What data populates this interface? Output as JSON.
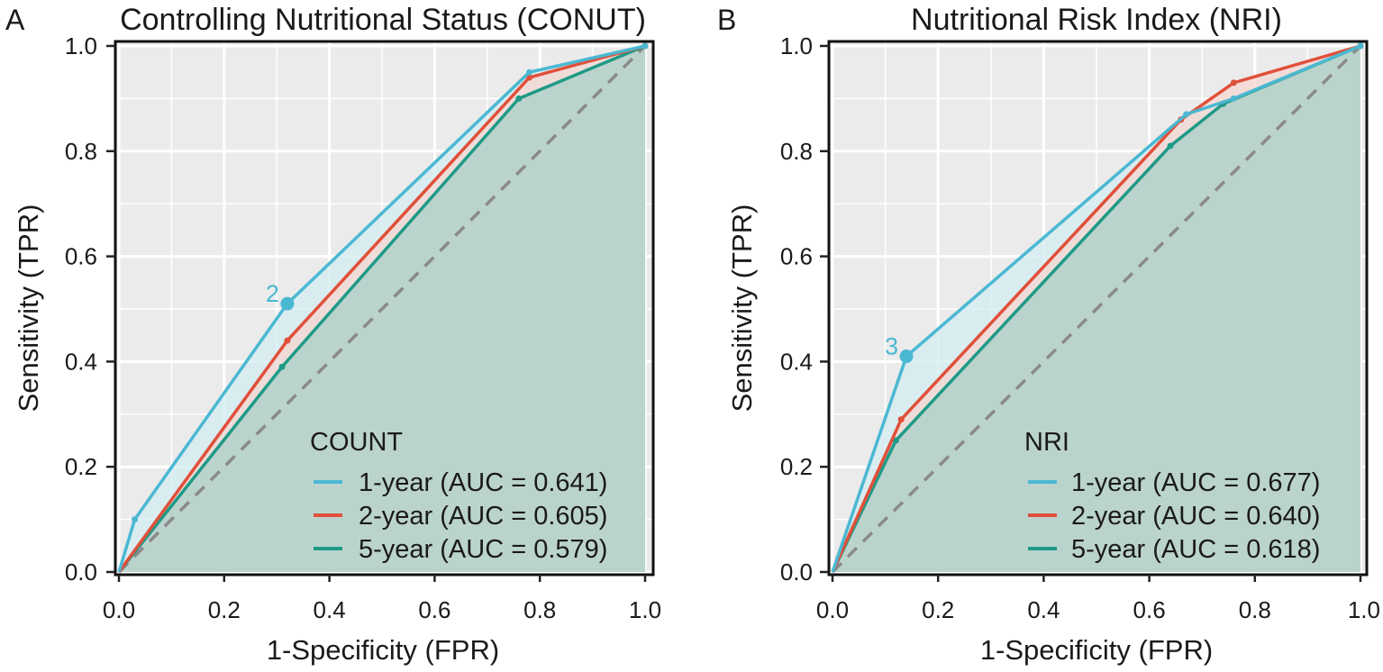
{
  "chart_data": [
    {
      "type": "line",
      "panel_letter": "A",
      "title": "Controlling Nutritional Status (CONUT)",
      "xlabel": "1-Specificity (FPR)",
      "ylabel": "Sensitivity (TPR)",
      "xlim": [
        0,
        1
      ],
      "ylim": [
        0,
        1
      ],
      "xticks": [
        "0.0",
        "0.2",
        "0.4",
        "0.6",
        "0.8",
        "1.0"
      ],
      "yticks": [
        "0.0",
        "0.2",
        "0.4",
        "0.6",
        "0.8",
        "1.0"
      ],
      "grid": true,
      "diagonal_reference": true,
      "legend": {
        "title": "COUNT",
        "position": "bottom-right"
      },
      "series": [
        {
          "name": "1-year (AUC = 0.641)",
          "color": "#4bb8d2",
          "x": [
            0,
            0.03,
            0.32,
            0.78,
            1.0
          ],
          "y": [
            0,
            0.1,
            0.51,
            0.95,
            1.0
          ],
          "cutoff": {
            "x": 0.32,
            "y": 0.51,
            "label": "2"
          }
        },
        {
          "name": "2-year (AUC = 0.605)",
          "color": "#e0503a",
          "x": [
            0,
            0.32,
            0.78,
            1.0
          ],
          "y": [
            0,
            0.44,
            0.94,
            1.0
          ]
        },
        {
          "name": "5-year (AUC = 0.579)",
          "color": "#1f9a86",
          "x": [
            0,
            0.31,
            0.76,
            1.0
          ],
          "y": [
            0,
            0.39,
            0.9,
            1.0
          ]
        }
      ]
    },
    {
      "type": "line",
      "panel_letter": "B",
      "title": "Nutritional Risk Index (NRI)",
      "xlabel": "1-Specificity (FPR)",
      "ylabel": "Sensitivity (TPR)",
      "xlim": [
        0,
        1
      ],
      "ylim": [
        0,
        1
      ],
      "xticks": [
        "0.0",
        "0.2",
        "0.4",
        "0.6",
        "0.8",
        "1.0"
      ],
      "yticks": [
        "0.0",
        "0.2",
        "0.4",
        "0.6",
        "0.8",
        "1.0"
      ],
      "grid": true,
      "diagonal_reference": true,
      "legend": {
        "title": "NRI",
        "position": "bottom-right"
      },
      "series": [
        {
          "name": "1-year (AUC = 0.677)",
          "color": "#4bb8d2",
          "x": [
            0,
            0.14,
            0.67,
            0.76,
            1.0
          ],
          "y": [
            0,
            0.41,
            0.87,
            0.9,
            1.0
          ],
          "cutoff": {
            "x": 0.14,
            "y": 0.41,
            "label": "3"
          }
        },
        {
          "name": "2-year (AUC = 0.640)",
          "color": "#e0503a",
          "x": [
            0,
            0.13,
            0.66,
            0.76,
            1.0
          ],
          "y": [
            0,
            0.29,
            0.86,
            0.93,
            1.0
          ]
        },
        {
          "name": "5-year (AUC = 0.618)",
          "color": "#1f9a86",
          "x": [
            0,
            0.12,
            0.64,
            0.74,
            1.0
          ],
          "y": [
            0,
            0.25,
            0.81,
            0.89,
            1.0
          ]
        }
      ]
    }
  ]
}
